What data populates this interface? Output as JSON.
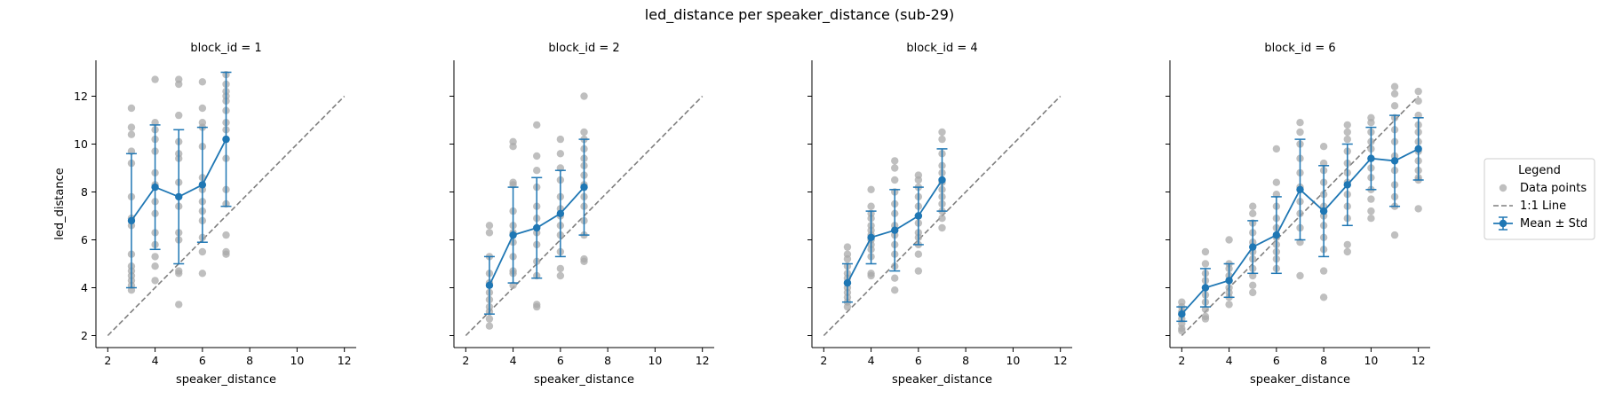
{
  "figure": {
    "title": "led_distance per speaker_distance (sub-29)"
  },
  "chart_data": [
    {
      "type": "scatter",
      "title": "block_id = 1",
      "xlabel": "speaker_distance",
      "ylabel": "led_distance",
      "xlim": [
        1.5,
        12.5
      ],
      "ylim": [
        1.5,
        13.5
      ],
      "xticks": [
        2,
        4,
        6,
        8,
        10,
        12
      ],
      "yticks": [
        2,
        4,
        6,
        8,
        10,
        12
      ],
      "identity_line": [
        2,
        12
      ],
      "mean": {
        "x": [
          3,
          4,
          5,
          6,
          7
        ],
        "y": [
          6.8,
          8.2,
          7.8,
          8.3,
          10.2
        ],
        "std": [
          2.8,
          2.6,
          2.8,
          2.4,
          2.8
        ]
      },
      "points": [
        [
          3,
          11.5
        ],
        [
          3,
          10.7
        ],
        [
          3,
          10.4
        ],
        [
          3,
          9.7
        ],
        [
          3,
          9.2
        ],
        [
          3,
          7.8
        ],
        [
          3,
          6.9
        ],
        [
          3,
          6.6
        ],
        [
          3,
          5.4
        ],
        [
          3,
          4.9
        ],
        [
          3,
          4.7
        ],
        [
          3,
          4.5
        ],
        [
          3,
          4.3
        ],
        [
          3,
          4.1
        ],
        [
          3,
          3.9
        ],
        [
          4,
          12.7
        ],
        [
          4,
          10.9
        ],
        [
          4,
          10.6
        ],
        [
          4,
          10.2
        ],
        [
          4,
          9.7
        ],
        [
          4,
          8.8
        ],
        [
          4,
          8.3
        ],
        [
          4,
          7.6
        ],
        [
          4,
          7.1
        ],
        [
          4,
          6.3
        ],
        [
          4,
          5.8
        ],
        [
          4,
          5.3
        ],
        [
          4,
          4.9
        ],
        [
          4,
          4.3
        ],
        [
          5,
          12.7
        ],
        [
          5,
          12.5
        ],
        [
          5,
          11.2
        ],
        [
          5,
          10.1
        ],
        [
          5,
          9.6
        ],
        [
          5,
          9.4
        ],
        [
          5,
          8.4
        ],
        [
          5,
          7.4
        ],
        [
          5,
          6.3
        ],
        [
          5,
          6.0
        ],
        [
          5,
          4.7
        ],
        [
          5,
          4.6
        ],
        [
          5,
          3.3
        ],
        [
          6,
          12.6
        ],
        [
          6,
          11.5
        ],
        [
          6,
          10.9
        ],
        [
          6,
          10.7
        ],
        [
          6,
          9.9
        ],
        [
          6,
          8.6
        ],
        [
          6,
          8.1
        ],
        [
          6,
          7.6
        ],
        [
          6,
          7.2
        ],
        [
          6,
          6.8
        ],
        [
          6,
          6.1
        ],
        [
          6,
          5.5
        ],
        [
          6,
          4.6
        ],
        [
          7,
          12.9
        ],
        [
          7,
          12.5
        ],
        [
          7,
          12.2
        ],
        [
          7,
          12.0
        ],
        [
          7,
          11.8
        ],
        [
          7,
          11.4
        ],
        [
          7,
          10.9
        ],
        [
          7,
          10.6
        ],
        [
          7,
          10.2
        ],
        [
          7,
          9.4
        ],
        [
          7,
          8.1
        ],
        [
          7,
          7.5
        ],
        [
          7,
          6.2
        ],
        [
          7,
          5.5
        ],
        [
          7,
          5.4
        ]
      ]
    },
    {
      "type": "scatter",
      "title": "block_id = 2",
      "xlabel": "speaker_distance",
      "xlim": [
        1.5,
        12.5
      ],
      "ylim": [
        1.5,
        13.5
      ],
      "xticks": [
        2,
        4,
        6,
        8,
        10,
        12
      ],
      "yticks": [
        2,
        4,
        6,
        8,
        10,
        12
      ],
      "identity_line": [
        2,
        12
      ],
      "mean": {
        "x": [
          3,
          4,
          5,
          6,
          7
        ],
        "y": [
          4.1,
          6.2,
          6.5,
          7.1,
          8.2
        ],
        "std": [
          1.2,
          2.0,
          2.1,
          1.8,
          2.0
        ]
      },
      "points": [
        [
          3,
          6.6
        ],
        [
          3,
          6.3
        ],
        [
          3,
          5.3
        ],
        [
          3,
          4.6
        ],
        [
          3,
          4.2
        ],
        [
          3,
          3.8
        ],
        [
          3,
          3.5
        ],
        [
          3,
          3.2
        ],
        [
          3,
          3.0
        ],
        [
          3,
          2.7
        ],
        [
          3,
          2.4
        ],
        [
          4,
          10.1
        ],
        [
          4,
          9.9
        ],
        [
          4,
          8.4
        ],
        [
          4,
          8.3
        ],
        [
          4,
          7.2
        ],
        [
          4,
          6.6
        ],
        [
          4,
          6.3
        ],
        [
          4,
          5.9
        ],
        [
          4,
          5.3
        ],
        [
          4,
          4.7
        ],
        [
          4,
          4.6
        ],
        [
          4,
          4.1
        ],
        [
          5,
          10.8
        ],
        [
          5,
          9.5
        ],
        [
          5,
          8.9
        ],
        [
          5,
          8.2
        ],
        [
          5,
          7.4
        ],
        [
          5,
          6.9
        ],
        [
          5,
          6.3
        ],
        [
          5,
          5.8
        ],
        [
          5,
          5.1
        ],
        [
          5,
          4.5
        ],
        [
          5,
          3.3
        ],
        [
          5,
          3.2
        ],
        [
          6,
          10.2
        ],
        [
          6,
          9.6
        ],
        [
          6,
          9.0
        ],
        [
          6,
          8.5
        ],
        [
          6,
          7.8
        ],
        [
          6,
          7.3
        ],
        [
          6,
          7.0
        ],
        [
          6,
          6.6
        ],
        [
          6,
          6.2
        ],
        [
          6,
          5.5
        ],
        [
          6,
          4.8
        ],
        [
          6,
          4.5
        ],
        [
          7,
          12.0
        ],
        [
          7,
          10.5
        ],
        [
          7,
          10.2
        ],
        [
          7,
          9.8
        ],
        [
          7,
          9.4
        ],
        [
          7,
          9.1
        ],
        [
          7,
          8.7
        ],
        [
          7,
          8.3
        ],
        [
          7,
          7.8
        ],
        [
          7,
          7.4
        ],
        [
          7,
          6.8
        ],
        [
          7,
          6.2
        ],
        [
          7,
          5.2
        ],
        [
          7,
          5.1
        ]
      ]
    },
    {
      "type": "scatter",
      "title": "block_id = 4",
      "xlabel": "speaker_distance",
      "xlim": [
        1.5,
        12.5
      ],
      "ylim": [
        1.5,
        13.5
      ],
      "xticks": [
        2,
        4,
        6,
        8,
        10,
        12
      ],
      "yticks": [
        2,
        4,
        6,
        8,
        10,
        12
      ],
      "identity_line": [
        2,
        12
      ],
      "mean": {
        "x": [
          3,
          4,
          5,
          6,
          7
        ],
        "y": [
          4.2,
          6.1,
          6.4,
          7.0,
          8.5
        ],
        "std": [
          0.8,
          1.1,
          1.7,
          1.2,
          1.3
        ]
      },
      "points": [
        [
          3,
          5.7
        ],
        [
          3,
          5.4
        ],
        [
          3,
          5.2
        ],
        [
          3,
          4.9
        ],
        [
          3,
          4.6
        ],
        [
          3,
          4.4
        ],
        [
          3,
          4.2
        ],
        [
          3,
          4.0
        ],
        [
          3,
          3.8
        ],
        [
          3,
          3.6
        ],
        [
          3,
          3.4
        ],
        [
          3,
          3.2
        ],
        [
          4,
          8.1
        ],
        [
          4,
          7.4
        ],
        [
          4,
          7.1
        ],
        [
          4,
          6.9
        ],
        [
          4,
          6.6
        ],
        [
          4,
          6.4
        ],
        [
          4,
          6.2
        ],
        [
          4,
          6.0
        ],
        [
          4,
          5.8
        ],
        [
          4,
          5.6
        ],
        [
          4,
          5.3
        ],
        [
          4,
          4.6
        ],
        [
          4,
          4.5
        ],
        [
          5,
          9.3
        ],
        [
          5,
          9.0
        ],
        [
          5,
          8.5
        ],
        [
          5,
          8.0
        ],
        [
          5,
          7.5
        ],
        [
          5,
          7.1
        ],
        [
          5,
          6.6
        ],
        [
          5,
          6.2
        ],
        [
          5,
          5.8
        ],
        [
          5,
          5.4
        ],
        [
          5,
          4.9
        ],
        [
          5,
          4.4
        ],
        [
          5,
          3.9
        ],
        [
          6,
          8.7
        ],
        [
          6,
          8.5
        ],
        [
          6,
          8.2
        ],
        [
          6,
          7.8
        ],
        [
          6,
          7.4
        ],
        [
          6,
          7.0
        ],
        [
          6,
          6.7
        ],
        [
          6,
          6.3
        ],
        [
          6,
          6.1
        ],
        [
          6,
          5.8
        ],
        [
          6,
          5.4
        ],
        [
          6,
          4.7
        ],
        [
          7,
          10.5
        ],
        [
          7,
          10.2
        ],
        [
          7,
          9.6
        ],
        [
          7,
          9.1
        ],
        [
          7,
          8.8
        ],
        [
          7,
          8.4
        ],
        [
          7,
          8.1
        ],
        [
          7,
          7.8
        ],
        [
          7,
          7.5
        ],
        [
          7,
          7.2
        ],
        [
          7,
          6.9
        ],
        [
          7,
          6.5
        ]
      ]
    },
    {
      "type": "scatter",
      "title": "block_id = 6",
      "xlabel": "speaker_distance",
      "xlim": [
        1.5,
        12.5
      ],
      "ylim": [
        1.5,
        13.5
      ],
      "xticks": [
        2,
        4,
        6,
        8,
        10,
        12
      ],
      "yticks": [
        2,
        4,
        6,
        8,
        10,
        12
      ],
      "identity_line": [
        2,
        12
      ],
      "mean": {
        "x": [
          2,
          3,
          4,
          5,
          6,
          7,
          8,
          9,
          10,
          11,
          12
        ],
        "y": [
          2.9,
          4.0,
          4.3,
          5.7,
          6.2,
          8.1,
          7.2,
          8.3,
          9.4,
          9.3,
          9.8
        ],
        "std": [
          0.3,
          0.8,
          0.7,
          1.1,
          1.6,
          2.1,
          1.9,
          1.7,
          1.3,
          1.9,
          1.3
        ]
      },
      "points": [
        [
          2,
          3.4
        ],
        [
          2,
          3.2
        ],
        [
          2,
          3.0
        ],
        [
          2,
          2.9
        ],
        [
          2,
          2.7
        ],
        [
          2,
          2.5
        ],
        [
          2,
          2.3
        ],
        [
          2,
          2.2
        ],
        [
          3,
          5.5
        ],
        [
          3,
          5.0
        ],
        [
          3,
          4.6
        ],
        [
          3,
          4.3
        ],
        [
          3,
          4.0
        ],
        [
          3,
          3.7
        ],
        [
          3,
          3.4
        ],
        [
          3,
          3.1
        ],
        [
          3,
          2.8
        ],
        [
          3,
          2.7
        ],
        [
          4,
          6.0
        ],
        [
          4,
          5.0
        ],
        [
          4,
          4.8
        ],
        [
          4,
          4.5
        ],
        [
          4,
          4.3
        ],
        [
          4,
          4.0
        ],
        [
          4,
          3.8
        ],
        [
          4,
          3.6
        ],
        [
          4,
          3.3
        ],
        [
          5,
          7.4
        ],
        [
          5,
          7.1
        ],
        [
          5,
          6.7
        ],
        [
          5,
          6.3
        ],
        [
          5,
          5.9
        ],
        [
          5,
          5.5
        ],
        [
          5,
          5.2
        ],
        [
          5,
          4.8
        ],
        [
          5,
          4.5
        ],
        [
          5,
          4.1
        ],
        [
          5,
          3.8
        ],
        [
          6,
          9.8
        ],
        [
          6,
          8.4
        ],
        [
          6,
          7.9
        ],
        [
          6,
          7.4
        ],
        [
          6,
          6.9
        ],
        [
          6,
          6.5
        ],
        [
          6,
          6.1
        ],
        [
          6,
          5.8
        ],
        [
          6,
          5.5
        ],
        [
          6,
          5.2
        ],
        [
          6,
          4.8
        ],
        [
          7,
          10.9
        ],
        [
          7,
          10.5
        ],
        [
          7,
          10.0
        ],
        [
          7,
          9.4
        ],
        [
          7,
          8.8
        ],
        [
          7,
          8.2
        ],
        [
          7,
          7.6
        ],
        [
          7,
          7.1
        ],
        [
          7,
          6.5
        ],
        [
          7,
          5.9
        ],
        [
          7,
          4.5
        ],
        [
          8,
          9.9
        ],
        [
          8,
          9.2
        ],
        [
          8,
          8.9
        ],
        [
          8,
          8.4
        ],
        [
          8,
          7.9
        ],
        [
          8,
          7.4
        ],
        [
          8,
          7.0
        ],
        [
          8,
          6.6
        ],
        [
          8,
          6.1
        ],
        [
          8,
          5.6
        ],
        [
          8,
          4.7
        ],
        [
          8,
          3.6
        ],
        [
          9,
          10.8
        ],
        [
          9,
          10.5
        ],
        [
          9,
          10.2
        ],
        [
          9,
          9.7
        ],
        [
          9,
          9.2
        ],
        [
          9,
          8.8
        ],
        [
          9,
          8.4
        ],
        [
          9,
          7.9
        ],
        [
          9,
          7.4
        ],
        [
          9,
          6.9
        ],
        [
          9,
          5.8
        ],
        [
          9,
          5.5
        ],
        [
          10,
          11.1
        ],
        [
          10,
          10.9
        ],
        [
          10,
          10.5
        ],
        [
          10,
          10.1
        ],
        [
          10,
          9.8
        ],
        [
          10,
          9.4
        ],
        [
          10,
          9.0
        ],
        [
          10,
          8.6
        ],
        [
          10,
          8.1
        ],
        [
          10,
          7.7
        ],
        [
          10,
          7.2
        ],
        [
          10,
          6.9
        ],
        [
          11,
          12.4
        ],
        [
          11,
          12.1
        ],
        [
          11,
          11.6
        ],
        [
          11,
          11.1
        ],
        [
          11,
          10.6
        ],
        [
          11,
          10.1
        ],
        [
          11,
          9.5
        ],
        [
          11,
          8.9
        ],
        [
          11,
          8.3
        ],
        [
          11,
          7.8
        ],
        [
          11,
          7.4
        ],
        [
          11,
          6.2
        ],
        [
          12,
          12.2
        ],
        [
          12,
          11.8
        ],
        [
          12,
          11.2
        ],
        [
          12,
          10.8
        ],
        [
          12,
          10.5
        ],
        [
          12,
          10.1
        ],
        [
          12,
          9.7
        ],
        [
          12,
          9.3
        ],
        [
          12,
          8.9
        ],
        [
          12,
          8.6
        ],
        [
          12,
          8.5
        ],
        [
          12,
          7.3
        ]
      ]
    }
  ],
  "legend": {
    "title": "Legend",
    "placement": "right",
    "items": [
      {
        "label": "Data points",
        "kind": "marker"
      },
      {
        "label": "1:1 Line",
        "kind": "dashed"
      },
      {
        "label": "Mean ± Std",
        "kind": "errorbar"
      }
    ]
  },
  "colors": {
    "points": "#a9a9a9",
    "mean": "#1f77b4",
    "identity_line": "#7f7f7f",
    "axes": "#000000"
  }
}
